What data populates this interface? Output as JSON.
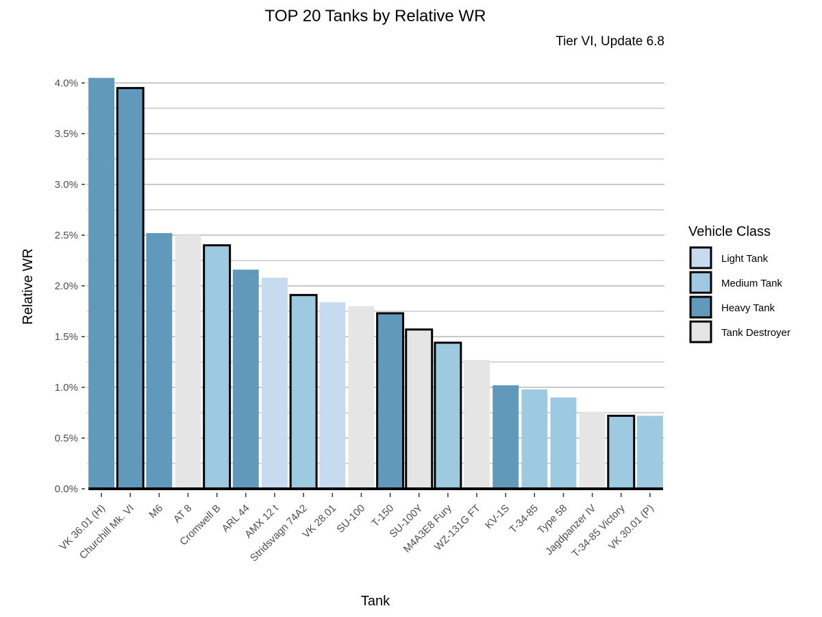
{
  "chart_data": {
    "type": "bar",
    "title": "TOP 20 Tanks by Relative WR",
    "subtitle": "Tier VI, Update 6.8",
    "xlabel": "Tank",
    "ylabel": "Relative WR",
    "ylim": [
      0,
      4.2
    ],
    "yticks": [
      0,
      0.5,
      1.0,
      1.5,
      2.0,
      2.5,
      3.0,
      3.5,
      4.0
    ],
    "ytick_labels": [
      "0.0%",
      "0.5%",
      "1.0%",
      "1.5%",
      "2.0%",
      "2.5%",
      "3.0%",
      "3.5%",
      "4.0%"
    ],
    "grid": true,
    "legend_position": "right",
    "legend_title": "Vehicle Class",
    "classes": [
      {
        "name": "Light Tank",
        "color": "#c6dbef"
      },
      {
        "name": "Medium Tank",
        "color": "#9ecae1"
      },
      {
        "name": "Heavy Tank",
        "color": "#6199bb"
      },
      {
        "name": "Tank Destroyer",
        "color": "#e5e5e5"
      }
    ],
    "bars": [
      {
        "tank": "VK 36.01 (H)",
        "value": 4.05,
        "class": "Heavy Tank",
        "outlined": false
      },
      {
        "tank": "Churchill Mk. VI",
        "value": 3.95,
        "class": "Heavy Tank",
        "outlined": true
      },
      {
        "tank": "M6",
        "value": 2.52,
        "class": "Heavy Tank",
        "outlined": false
      },
      {
        "tank": "AT 8",
        "value": 2.5,
        "class": "Tank Destroyer",
        "outlined": false
      },
      {
        "tank": "Cromwell B",
        "value": 2.4,
        "class": "Medium Tank",
        "outlined": true
      },
      {
        "tank": "ARL 44",
        "value": 2.16,
        "class": "Heavy Tank",
        "outlined": false
      },
      {
        "tank": "AMX 12 t",
        "value": 2.08,
        "class": "Light Tank",
        "outlined": false
      },
      {
        "tank": "Stridsvagn 74A2",
        "value": 1.91,
        "class": "Medium Tank",
        "outlined": true
      },
      {
        "tank": "VK 28.01",
        "value": 1.84,
        "class": "Light Tank",
        "outlined": false
      },
      {
        "tank": "SU-100",
        "value": 1.8,
        "class": "Tank Destroyer",
        "outlined": false
      },
      {
        "tank": "T-150",
        "value": 1.73,
        "class": "Heavy Tank",
        "outlined": true
      },
      {
        "tank": "SU-100Y",
        "value": 1.57,
        "class": "Tank Destroyer",
        "outlined": true
      },
      {
        "tank": "M4A3E8 Fury",
        "value": 1.44,
        "class": "Medium Tank",
        "outlined": true
      },
      {
        "tank": "WZ-131G FT",
        "value": 1.27,
        "class": "Tank Destroyer",
        "outlined": false
      },
      {
        "tank": "KV-1S",
        "value": 1.02,
        "class": "Heavy Tank",
        "outlined": false
      },
      {
        "tank": "T-34-85",
        "value": 0.98,
        "class": "Medium Tank",
        "outlined": false
      },
      {
        "tank": "Type 58",
        "value": 0.9,
        "class": "Medium Tank",
        "outlined": false
      },
      {
        "tank": "Jagdpanzer IV",
        "value": 0.76,
        "class": "Tank Destroyer",
        "outlined": false
      },
      {
        "tank": "T-34-85 Victory",
        "value": 0.72,
        "class": "Medium Tank",
        "outlined": true
      },
      {
        "tank": "VK 30.01 (P)",
        "value": 0.72,
        "class": "Medium Tank",
        "outlined": false
      }
    ]
  }
}
